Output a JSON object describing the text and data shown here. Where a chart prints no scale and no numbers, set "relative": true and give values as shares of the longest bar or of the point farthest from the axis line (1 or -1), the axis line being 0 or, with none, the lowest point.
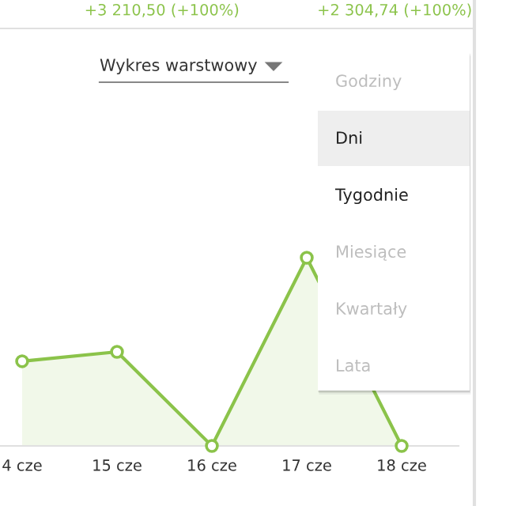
{
  "chart_data": {
    "type": "area",
    "relative": true,
    "categories": [
      "4 cze",
      "15 cze",
      "16 cze",
      "17 cze",
      "18 cze"
    ],
    "series": [
      {
        "color": "#8bc34a",
        "values": [
          0.45,
          0.5,
          0,
          1,
          0
        ]
      }
    ],
    "marker": "circle",
    "annotations": [
      "+3 210,50 (+100%)",
      "+2 304,74 (+100%)",
      "Wykres warstwowy",
      "Godziny",
      "Dni",
      "Tygodnie",
      "Miesiące",
      "Kwartały",
      "Lata"
    ]
  }
}
